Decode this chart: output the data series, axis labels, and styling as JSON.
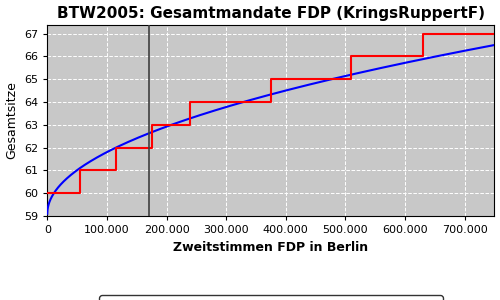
{
  "title": "BTW2005: Gesamtmandate FDP (KringsRuppertF)",
  "xlabel": "Zweitstimmen FDP in Berlin",
  "ylabel": "Gesamtsitze",
  "bg_color": "#c8c8c8",
  "xlim": [
    0,
    750000
  ],
  "ylim": [
    59,
    67.4
  ],
  "yticks": [
    59,
    60,
    61,
    62,
    63,
    64,
    65,
    66,
    67
  ],
  "xticks": [
    0,
    100000,
    200000,
    300000,
    400000,
    500000,
    600000,
    700000
  ],
  "xtick_labels": [
    "0",
    "100.000",
    "200.000",
    "300.000",
    "400.000",
    "500.000",
    "600.000",
    "700.000"
  ],
  "wahlergebnis_x": 170000,
  "red_steps": [
    [
      0,
      60.0
    ],
    [
      55000,
      60.0
    ],
    [
      55000,
      61.0
    ],
    [
      115000,
      61.0
    ],
    [
      115000,
      62.0
    ],
    [
      175000,
      62.0
    ],
    [
      175000,
      63.0
    ],
    [
      240000,
      63.0
    ],
    [
      240000,
      64.0
    ],
    [
      375000,
      64.0
    ],
    [
      375000,
      65.0
    ],
    [
      510000,
      65.0
    ],
    [
      510000,
      66.0
    ],
    [
      630000,
      66.0
    ],
    [
      630000,
      67.0
    ],
    [
      750000,
      67.0
    ]
  ],
  "ideal_start_y": 59.1,
  "ideal_end_y": 66.5,
  "title_fontsize": 11,
  "axis_label_fontsize": 9,
  "tick_fontsize": 8,
  "legend_fontsize": 9
}
